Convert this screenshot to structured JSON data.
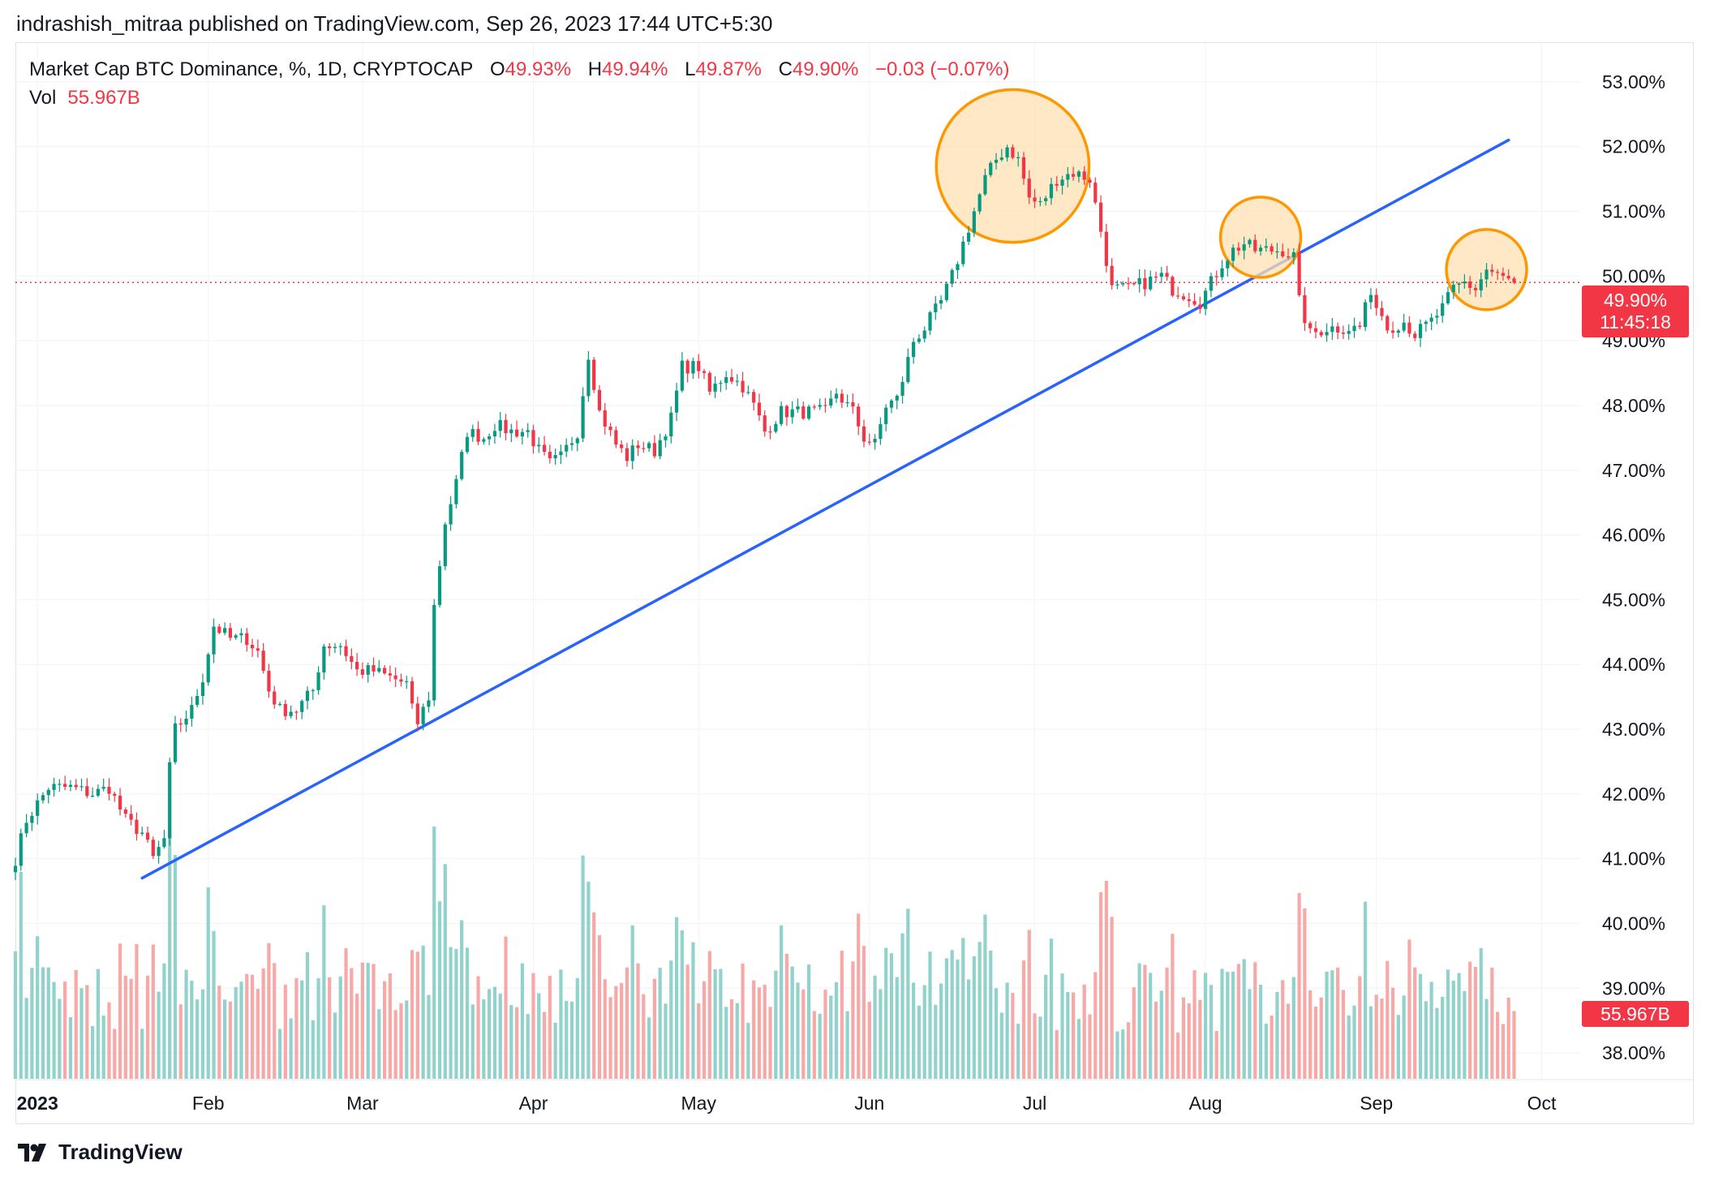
{
  "publisher_line": "indrashish_mitraa published on TradingView.com, Sep 26, 2023 17:44 UTC+5:30",
  "legend": {
    "symbol": "Market Cap BTC Dominance, %, 1D, CRYPTOCAP",
    "o_label": "O",
    "o_value": "49.93%",
    "h_label": "H",
    "h_value": "49.94%",
    "l_label": "L",
    "l_value": "49.87%",
    "c_label": "C",
    "c_value": "49.90%",
    "change": "−0.03 (−0.07%)",
    "vol_label": "Vol",
    "vol_value": "55.967B"
  },
  "price_badge": {
    "price": "49.90%",
    "countdown": "11:45:18"
  },
  "volume_badge": "55.967B",
  "footer_brand": "TradingView",
  "colors": {
    "up": "#089981",
    "down": "#f23645",
    "up_vol": "#92d2cc",
    "down_vol": "#f7a9a7",
    "trendline": "#2962ff",
    "highlight_stroke": "#ff9800",
    "highlight_fill": "#ffe0b2",
    "price_line": "#f23645",
    "grid": "#f0f3fa"
  },
  "chart_data": {
    "type": "candlestick",
    "symbol": "Market Cap BTC Dominance, %, 1D, CRYPTOCAP",
    "y_unit": "%",
    "y_ticks": [
      "53.00%",
      "52.00%",
      "51.00%",
      "50.00%",
      "49.00%",
      "48.00%",
      "47.00%",
      "46.00%",
      "45.00%",
      "44.00%",
      "43.00%",
      "42.00%",
      "41.00%",
      "40.00%",
      "39.00%",
      "38.00%"
    ],
    "y_range": [
      37.6,
      53.6
    ],
    "x_ticks": [
      "2023",
      "Feb",
      "Mar",
      "Apr",
      "May",
      "Jun",
      "Jul",
      "Aug",
      "Sep",
      "Oct"
    ],
    "x_range": [
      "2022-12-28",
      "2023-10-08"
    ],
    "last_close": 49.9,
    "grid": true,
    "close_path": [
      [
        "2022-12-28",
        41.0
      ],
      [
        "2022-12-30",
        41.6
      ],
      [
        "2023-01-03",
        42.1
      ],
      [
        "2023-01-07",
        42.1
      ],
      [
        "2023-01-11",
        42.0
      ],
      [
        "2023-01-14",
        42.1
      ],
      [
        "2023-01-17",
        41.6
      ],
      [
        "2023-01-20",
        41.4
      ],
      [
        "2023-01-22",
        41.0
      ],
      [
        "2023-01-24",
        41.3
      ],
      [
        "2023-01-25",
        42.4
      ],
      [
        "2023-01-26",
        43.0
      ],
      [
        "2023-01-29",
        43.3
      ],
      [
        "2023-01-31",
        43.8
      ],
      [
        "2023-02-02",
        44.6
      ],
      [
        "2023-02-05",
        44.4
      ],
      [
        "2023-02-08",
        44.4
      ],
      [
        "2023-02-10",
        44.2
      ],
      [
        "2023-02-12",
        43.6
      ],
      [
        "2023-02-14",
        43.3
      ],
      [
        "2023-02-17",
        43.3
      ],
      [
        "2023-02-20",
        43.6
      ],
      [
        "2023-02-22",
        44.3
      ],
      [
        "2023-02-25",
        44.3
      ],
      [
        "2023-02-28",
        43.9
      ],
      [
        "2023-03-03",
        43.9
      ],
      [
        "2023-03-06",
        43.8
      ],
      [
        "2023-03-09",
        43.7
      ],
      [
        "2023-03-10",
        43.3
      ],
      [
        "2023-03-11",
        43.1
      ],
      [
        "2023-03-13",
        43.5
      ],
      [
        "2023-03-14",
        44.9
      ],
      [
        "2023-03-16",
        46.2
      ],
      [
        "2023-03-18",
        46.8
      ],
      [
        "2023-03-20",
        47.6
      ],
      [
        "2023-03-23",
        47.5
      ],
      [
        "2023-03-25",
        47.7
      ],
      [
        "2023-03-28",
        47.6
      ],
      [
        "2023-03-31",
        47.6
      ],
      [
        "2023-04-02",
        47.3
      ],
      [
        "2023-04-04",
        47.1
      ],
      [
        "2023-04-06",
        47.2
      ],
      [
        "2023-04-09",
        47.6
      ],
      [
        "2023-04-11",
        48.8
      ],
      [
        "2023-04-13",
        47.9
      ],
      [
        "2023-04-16",
        47.4
      ],
      [
        "2023-04-18",
        47.2
      ],
      [
        "2023-04-20",
        47.4
      ],
      [
        "2023-04-23",
        47.3
      ],
      [
        "2023-04-26",
        47.8
      ],
      [
        "2023-04-28",
        48.6
      ],
      [
        "2023-05-01",
        48.6
      ],
      [
        "2023-05-03",
        48.2
      ],
      [
        "2023-05-06",
        48.5
      ],
      [
        "2023-05-09",
        48.3
      ],
      [
        "2023-05-11",
        48.0
      ],
      [
        "2023-05-13",
        47.6
      ],
      [
        "2023-05-16",
        47.9
      ],
      [
        "2023-05-19",
        47.9
      ],
      [
        "2023-05-21",
        47.9
      ],
      [
        "2023-05-24",
        47.9
      ],
      [
        "2023-05-26",
        48.2
      ],
      [
        "2023-05-29",
        47.9
      ],
      [
        "2023-05-31",
        47.5
      ],
      [
        "2023-06-02",
        47.4
      ],
      [
        "2023-06-04",
        48.0
      ],
      [
        "2023-06-06",
        48.1
      ],
      [
        "2023-06-09",
        49.0
      ],
      [
        "2023-06-11",
        49.2
      ],
      [
        "2023-06-14",
        49.6
      ],
      [
        "2023-06-16",
        50.0
      ],
      [
        "2023-06-18",
        50.5
      ],
      [
        "2023-06-20",
        51.0
      ],
      [
        "2023-06-22",
        51.5
      ],
      [
        "2023-06-24",
        51.8
      ],
      [
        "2023-06-26",
        52.0
      ],
      [
        "2023-06-28",
        51.8
      ],
      [
        "2023-06-30",
        51.2
      ],
      [
        "2023-07-02",
        51.1
      ],
      [
        "2023-07-05",
        51.5
      ],
      [
        "2023-07-08",
        51.6
      ],
      [
        "2023-07-11",
        51.5
      ],
      [
        "2023-07-13",
        50.7
      ],
      [
        "2023-07-15",
        49.8
      ],
      [
        "2023-07-18",
        49.8
      ],
      [
        "2023-07-21",
        49.9
      ],
      [
        "2023-07-24",
        50.0
      ],
      [
        "2023-07-26",
        49.8
      ],
      [
        "2023-07-29",
        49.7
      ],
      [
        "2023-07-31",
        49.6
      ],
      [
        "2023-08-02",
        49.9
      ],
      [
        "2023-08-04",
        50.2
      ],
      [
        "2023-08-06",
        50.4
      ],
      [
        "2023-08-08",
        50.5
      ],
      [
        "2023-08-10",
        50.4
      ],
      [
        "2023-08-12",
        50.4
      ],
      [
        "2023-08-15",
        50.4
      ],
      [
        "2023-08-17",
        50.3
      ],
      [
        "2023-08-18",
        49.6
      ],
      [
        "2023-08-20",
        49.1
      ],
      [
        "2023-08-23",
        49.2
      ],
      [
        "2023-08-26",
        49.2
      ],
      [
        "2023-08-29",
        49.2
      ],
      [
        "2023-08-30",
        49.6
      ],
      [
        "2023-09-01",
        49.6
      ],
      [
        "2023-09-03",
        49.2
      ],
      [
        "2023-09-06",
        49.3
      ],
      [
        "2023-09-08",
        49.1
      ],
      [
        "2023-09-11",
        49.3
      ],
      [
        "2023-09-13",
        49.5
      ],
      [
        "2023-09-15",
        49.8
      ],
      [
        "2023-09-17",
        49.9
      ],
      [
        "2023-09-19",
        49.8
      ],
      [
        "2023-09-21",
        50.1
      ],
      [
        "2023-09-23",
        50.0
      ],
      [
        "2023-09-26",
        49.9
      ]
    ],
    "volume_range_billion": [
      0,
      180
    ],
    "trendline": {
      "from": [
        "2023-01-20",
        40.7
      ],
      "to": [
        "2023-09-25",
        52.1
      ]
    },
    "highlights": [
      {
        "center": [
          "2023-06-27",
          51.7
        ],
        "radius_pct": 1.18
      },
      {
        "center": [
          "2023-08-11",
          50.6
        ],
        "radius_pct": 0.62
      },
      {
        "center": [
          "2023-09-21",
          50.1
        ],
        "radius_pct": 0.62
      }
    ]
  }
}
